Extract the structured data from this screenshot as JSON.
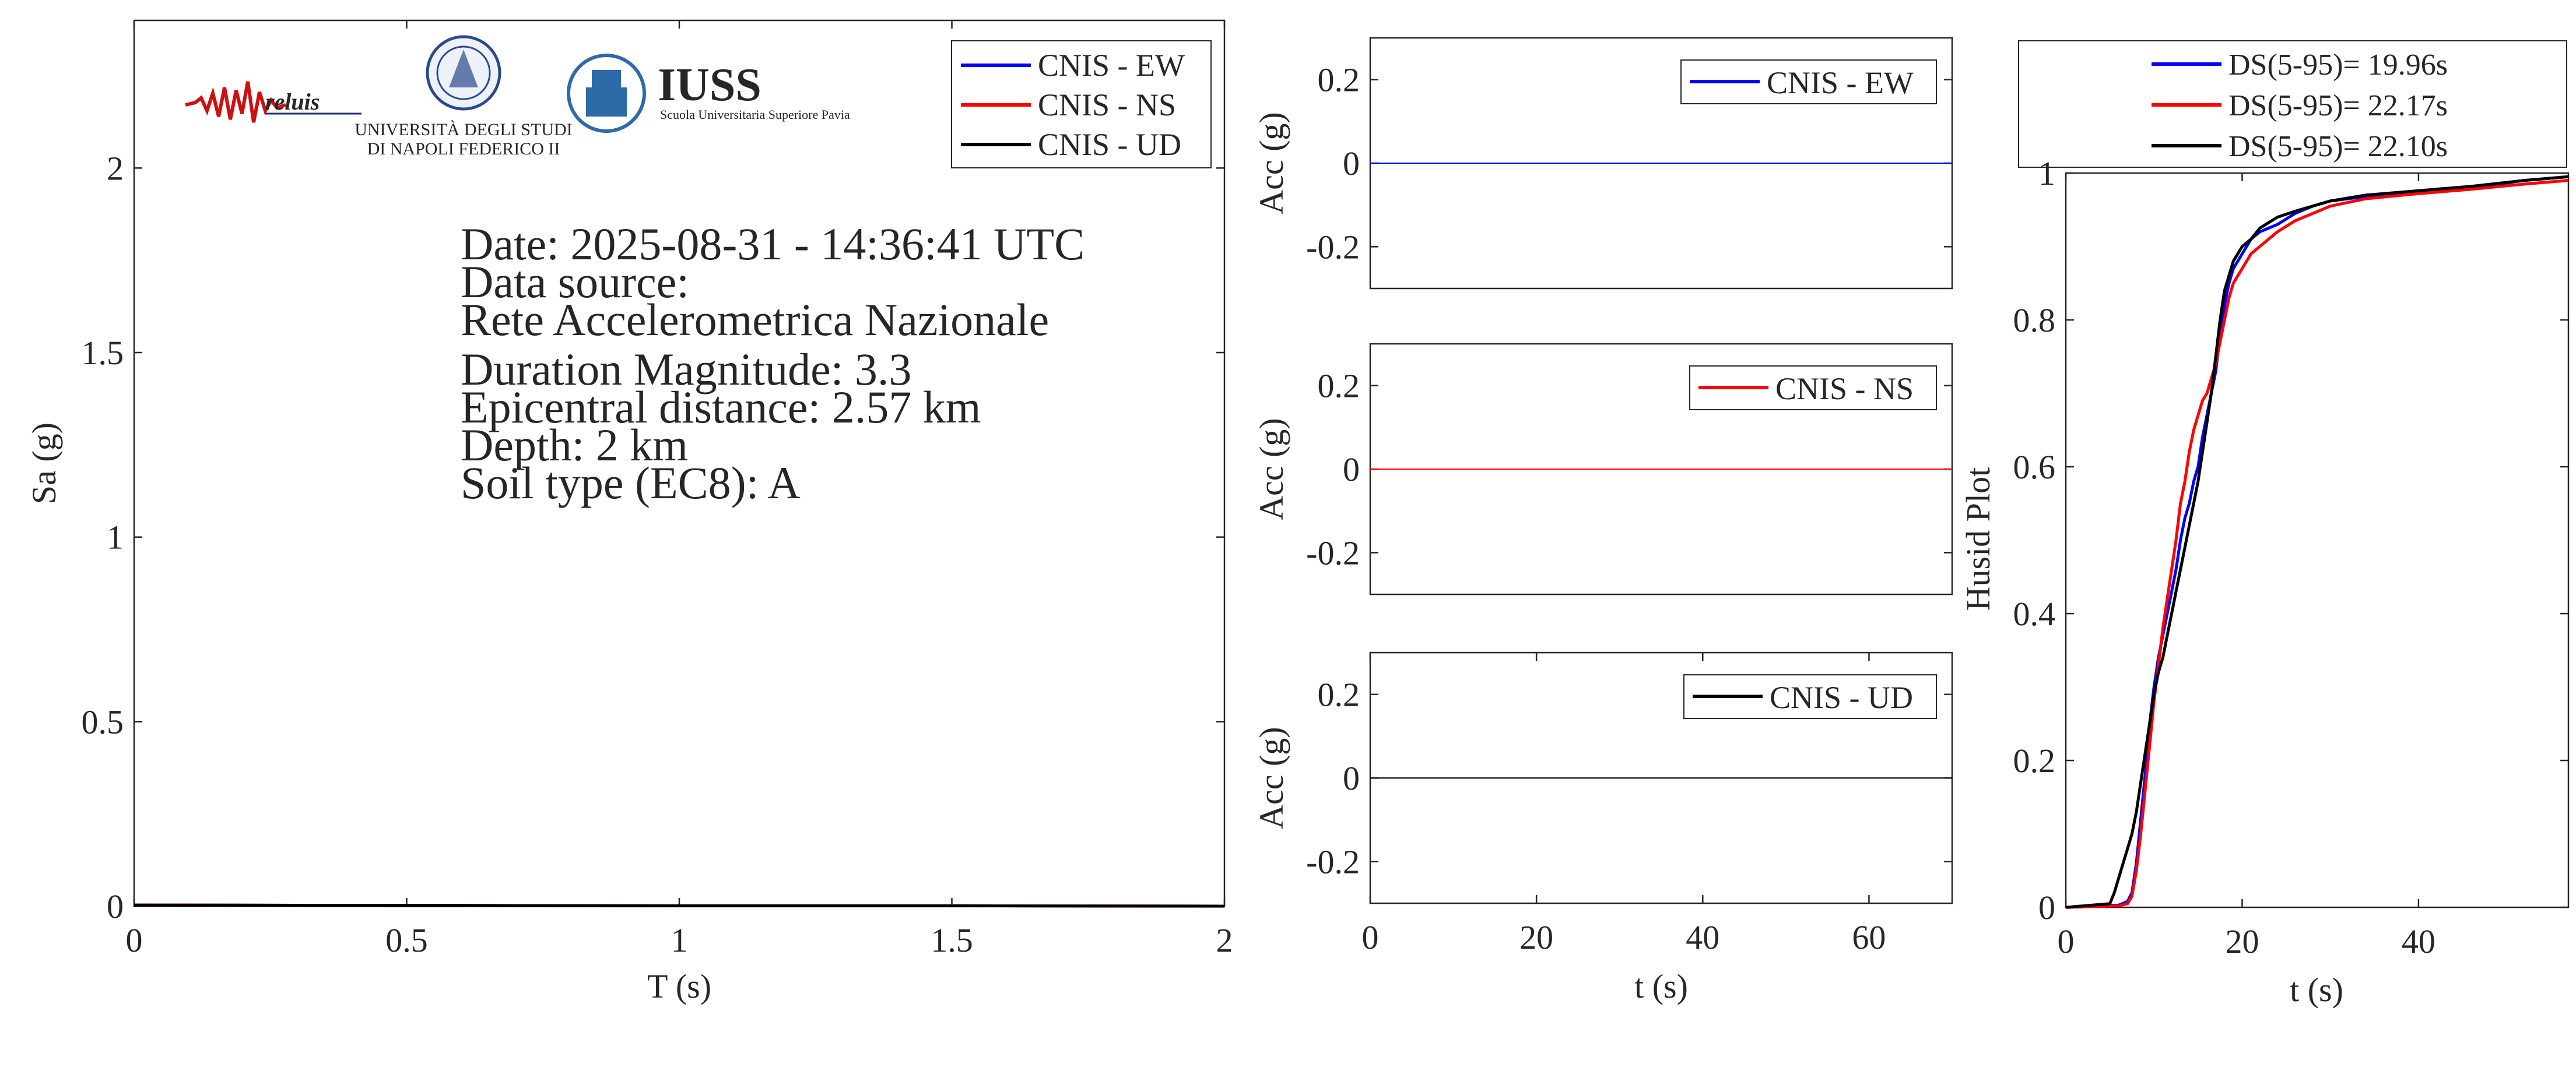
{
  "colors": {
    "ew": "#0000ff",
    "ns": "#ff0000",
    "ud": "#000000",
    "axis": "#262626"
  },
  "logos": {
    "reluis": "reluis",
    "unina_line1": "UNIVERSITÀ DEGLI STUDI",
    "unina_line2": "DI NAPOLI FEDERICO II",
    "iuss_title": "IUSS",
    "iuss_subtitle": "Scuola Universitaria Superiore Pavia"
  },
  "info": {
    "date": "Date: 2025-08-31 - 14:36:41 UTC",
    "source_label": "Data source:",
    "source": "Rete Accelerometrica Nazionale",
    "magnitude": "Duration Magnitude: 3.3",
    "distance": "Epicentral distance: 2.57 km",
    "depth": "Depth: 2 km",
    "soil": "Soil type (EC8): A"
  },
  "chart_data": [
    {
      "id": "spectrum",
      "type": "line",
      "xlabel": "T (s)",
      "ylabel": "Sa (g)",
      "xlim": [
        0,
        2
      ],
      "ylim": [
        0,
        2.4
      ],
      "xticks": [
        "0",
        "0.5",
        "1",
        "1.5",
        "2"
      ],
      "yticks": [
        "0",
        "0.5",
        "1",
        "1.5",
        "2"
      ],
      "legend_position": "top-right",
      "series": [
        {
          "name": "CNIS - EW",
          "color_key": "ew",
          "x": [
            0,
            0.5,
            1,
            1.5,
            2
          ],
          "y": [
            0.003,
            0.002,
            0.001,
            0.001,
            0.0
          ]
        },
        {
          "name": "CNIS - NS",
          "color_key": "ns",
          "x": [
            0,
            0.5,
            1,
            1.5,
            2
          ],
          "y": [
            0.003,
            0.002,
            0.001,
            0.001,
            0.0
          ]
        },
        {
          "name": "CNIS - UD",
          "color_key": "ud",
          "x": [
            0,
            0.5,
            1,
            1.5,
            2
          ],
          "y": [
            0.003,
            0.002,
            0.001,
            0.001,
            0.0
          ]
        }
      ]
    },
    {
      "id": "acc-ew",
      "type": "line",
      "ylabel": "Acc (g)",
      "xlim": [
        0,
        70
      ],
      "ylim": [
        -0.3,
        0.3
      ],
      "yticks": [
        "0.2",
        "0",
        "-0.2"
      ],
      "legend_position": "top-right",
      "series": [
        {
          "name": "CNIS - EW",
          "color_key": "ew",
          "x": [
            0,
            70
          ],
          "y": [
            0,
            0
          ]
        }
      ]
    },
    {
      "id": "acc-ns",
      "type": "line",
      "ylabel": "Acc (g)",
      "xlim": [
        0,
        70
      ],
      "ylim": [
        -0.3,
        0.3
      ],
      "yticks": [
        "0.2",
        "0",
        "-0.2"
      ],
      "legend_position": "top-right",
      "series": [
        {
          "name": "CNIS - NS",
          "color_key": "ns",
          "x": [
            0,
            70
          ],
          "y": [
            0,
            0
          ]
        }
      ]
    },
    {
      "id": "acc-ud",
      "type": "line",
      "xlabel": "t (s)",
      "ylabel": "Acc (g)",
      "xlim": [
        0,
        70
      ],
      "ylim": [
        -0.3,
        0.3
      ],
      "xticks": [
        "0",
        "20",
        "40",
        "60"
      ],
      "yticks": [
        "0.2",
        "0",
        "-0.2"
      ],
      "legend_position": "top-right",
      "series": [
        {
          "name": "CNIS - UD",
          "color_key": "ud",
          "x": [
            0,
            70
          ],
          "y": [
            0,
            0
          ]
        }
      ]
    },
    {
      "id": "husid",
      "type": "line",
      "xlabel": "t (s)",
      "ylabel": "Husid Plot",
      "xlim": [
        0,
        57
      ],
      "ylim": [
        0,
        1
      ],
      "xticks": [
        "0",
        "20",
        "40"
      ],
      "yticks": [
        "0",
        "0.2",
        "0.4",
        "0.6",
        "0.8",
        "1"
      ],
      "legend_position": "top",
      "series": [
        {
          "name": "DS(5-95)= 19.96s",
          "color_key": "ew",
          "x": [
            0,
            6,
            7,
            7.5,
            8,
            8.5,
            9,
            9.5,
            10,
            10.5,
            11,
            11.5,
            12,
            12.5,
            13,
            13.5,
            14,
            14.5,
            15,
            15.5,
            16,
            16.5,
            17,
            17.5,
            18,
            18.5,
            19,
            20,
            21,
            22,
            24,
            26,
            28,
            30,
            34,
            40,
            46,
            52,
            57
          ],
          "y": [
            0,
            0.003,
            0.008,
            0.02,
            0.06,
            0.12,
            0.18,
            0.25,
            0.3,
            0.34,
            0.37,
            0.4,
            0.43,
            0.46,
            0.5,
            0.53,
            0.55,
            0.58,
            0.6,
            0.64,
            0.67,
            0.7,
            0.73,
            0.78,
            0.82,
            0.85,
            0.87,
            0.89,
            0.91,
            0.92,
            0.93,
            0.945,
            0.955,
            0.962,
            0.968,
            0.975,
            0.98,
            0.99,
            0.995
          ]
        },
        {
          "name": "DS(5-95)= 22.17s",
          "color_key": "ns",
          "x": [
            0,
            6,
            7,
            7.5,
            8,
            8.5,
            9,
            9.5,
            10,
            10.5,
            11,
            11.5,
            12,
            12.5,
            13,
            13.5,
            14,
            14.5,
            15,
            15.5,
            16,
            16.5,
            17,
            17.5,
            18,
            18.5,
            19,
            20,
            21,
            22,
            24,
            26,
            28,
            30,
            34,
            40,
            46,
            52,
            57
          ],
          "y": [
            0,
            0.002,
            0.005,
            0.015,
            0.05,
            0.1,
            0.16,
            0.22,
            0.28,
            0.33,
            0.38,
            0.42,
            0.46,
            0.5,
            0.55,
            0.58,
            0.62,
            0.65,
            0.67,
            0.69,
            0.7,
            0.72,
            0.74,
            0.77,
            0.8,
            0.83,
            0.85,
            0.87,
            0.89,
            0.9,
            0.92,
            0.935,
            0.945,
            0.955,
            0.965,
            0.972,
            0.978,
            0.985,
            0.99
          ]
        },
        {
          "name": "DS(5-95)= 22.10s",
          "color_key": "ud",
          "x": [
            0,
            5,
            5.5,
            6,
            6.5,
            7,
            7.5,
            8,
            8.5,
            9,
            9.5,
            10,
            10.5,
            11,
            11.5,
            12,
            12.5,
            13,
            13.5,
            14,
            14.5,
            15,
            15.5,
            16,
            16.5,
            17,
            17.5,
            18,
            18.5,
            19,
            20,
            21,
            22,
            24,
            26,
            28,
            30,
            34,
            40,
            46,
            52,
            57
          ],
          "y": [
            0,
            0.005,
            0.02,
            0.04,
            0.06,
            0.08,
            0.1,
            0.13,
            0.17,
            0.21,
            0.25,
            0.29,
            0.32,
            0.34,
            0.37,
            0.4,
            0.43,
            0.46,
            0.49,
            0.52,
            0.55,
            0.58,
            0.62,
            0.66,
            0.7,
            0.75,
            0.8,
            0.84,
            0.86,
            0.88,
            0.9,
            0.91,
            0.925,
            0.94,
            0.948,
            0.955,
            0.962,
            0.97,
            0.976,
            0.982,
            0.99,
            0.995
          ]
        }
      ]
    }
  ]
}
